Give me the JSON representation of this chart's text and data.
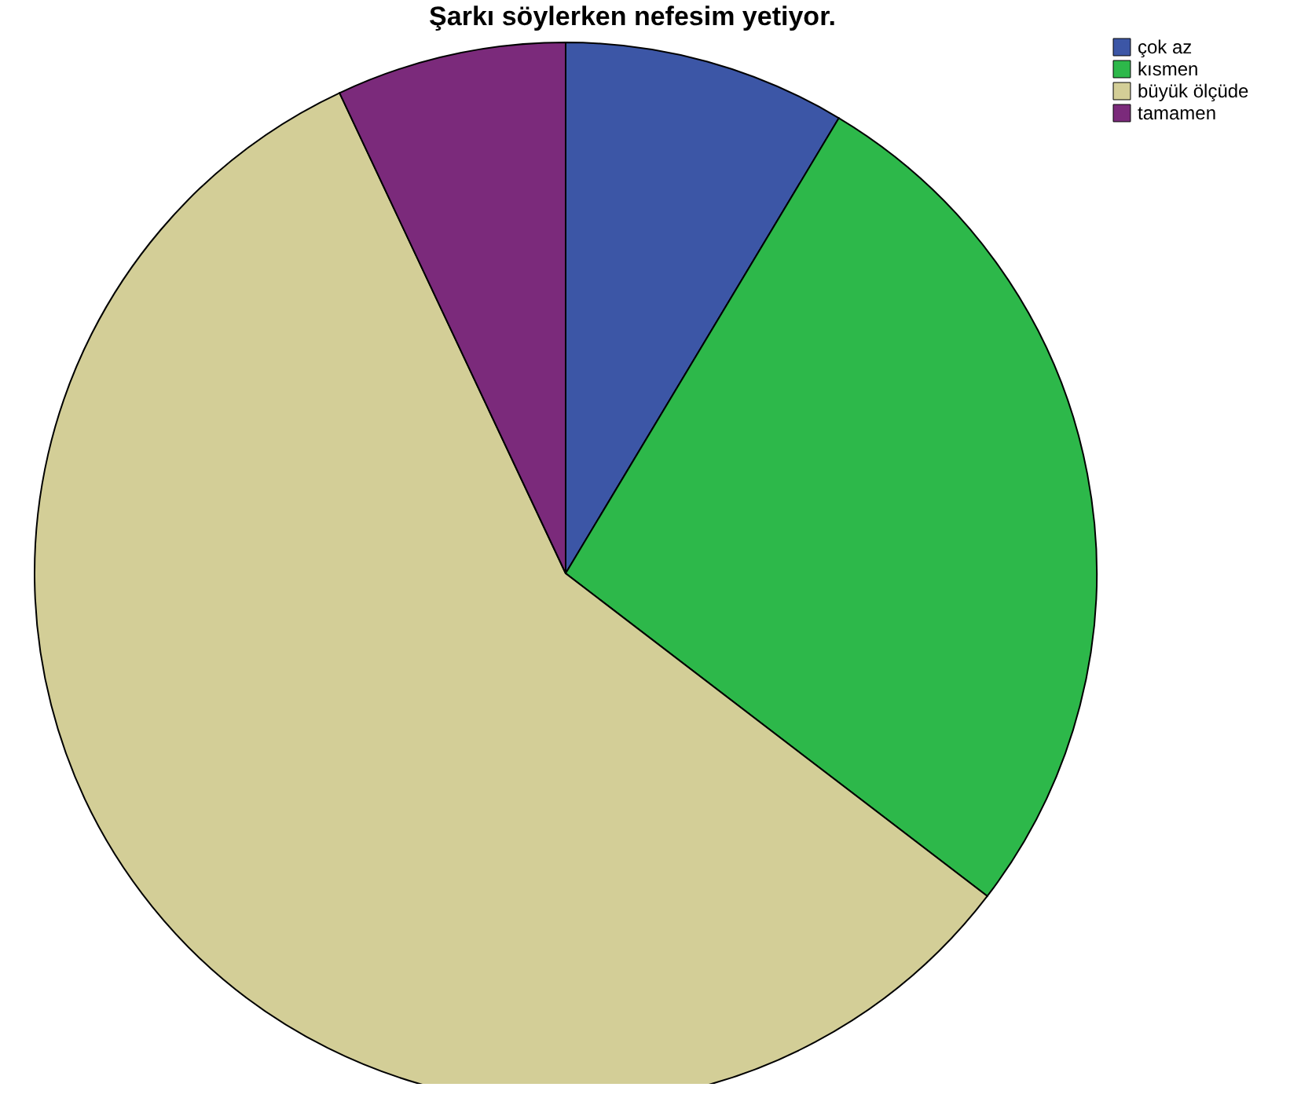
{
  "chart_data": {
    "type": "pie",
    "title": "Şarkı söylerken nefesim yetiyor.",
    "categories": [
      "çok az",
      "kısmen",
      "büyük ölçüde",
      "tamamen"
    ],
    "values": [
      8.6,
      26.8,
      57.6,
      7.0
    ],
    "colors": [
      "#3c56a6",
      "#2db84a",
      "#d3ce97",
      "#7b2a7b"
    ],
    "legend": "top right"
  }
}
